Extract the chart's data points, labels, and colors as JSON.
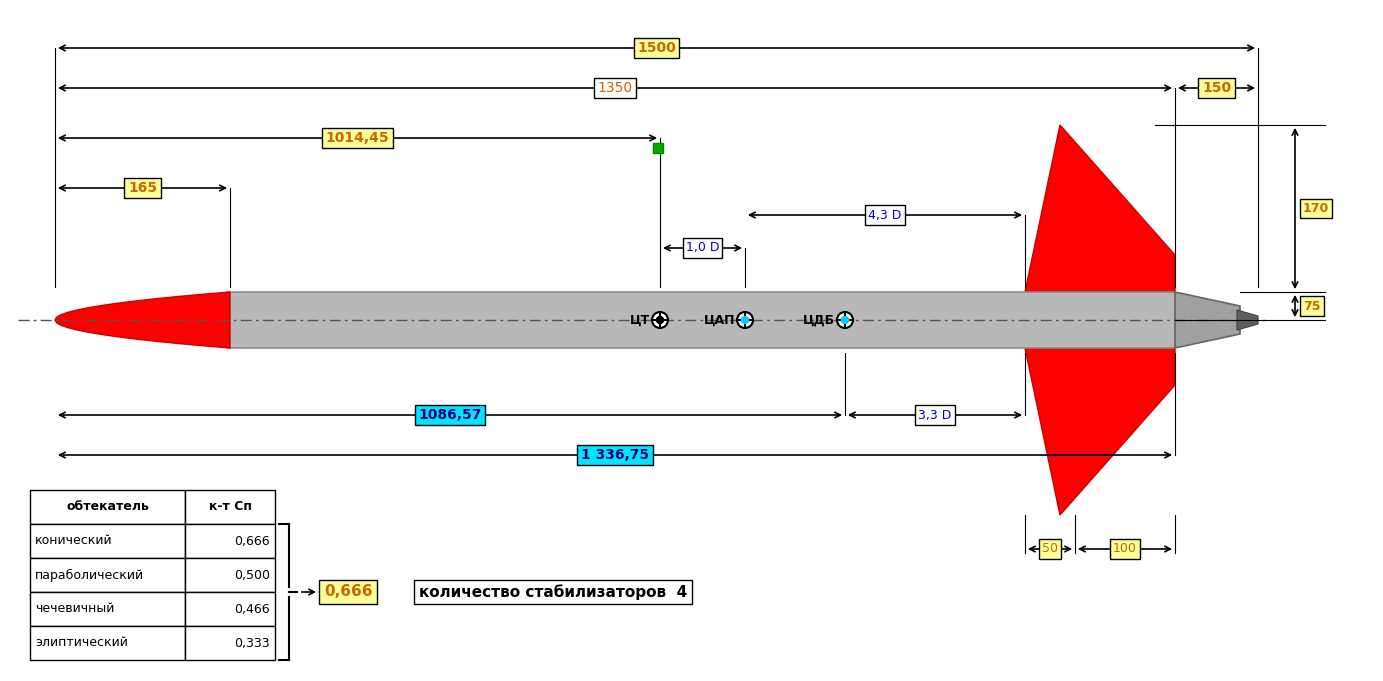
{
  "bg_color": "#ffffff",
  "rocket_body_color": "#b8b8b8",
  "nose_color": "#ff0000",
  "fin_color": "#ff0000",
  "nozzle_color": "#909090",
  "annotations": {
    "dim_1500": "1500",
    "dim_1350": "1350",
    "dim_150": "150",
    "dim_1014": "1014,45",
    "dim_165": "165",
    "dim_43D": "4,3 D",
    "dim_10D": "1,0 D",
    "dim_33D": "3,3 D",
    "dim_1086": "1086,57",
    "dim_1336": "1 336,75",
    "dim_75": "75",
    "dim_170": "170",
    "dim_50": "50",
    "dim_100": "100",
    "label_CT": "ЦТ",
    "label_CAP": "ЦАП",
    "label_CDB": "ЦДБ",
    "stab_count_label": "количество стабилизаторов",
    "stab_count_value": "4",
    "coeff_value": "0,666",
    "table_headers": [
      "обтекатель",
      "к-т Сп"
    ],
    "table_rows": [
      [
        "конический",
        "0,666"
      ],
      [
        "параболический",
        "0,500"
      ],
      [
        "чечевичный",
        "0,466"
      ],
      [
        "элиптический",
        "0,333"
      ]
    ]
  }
}
